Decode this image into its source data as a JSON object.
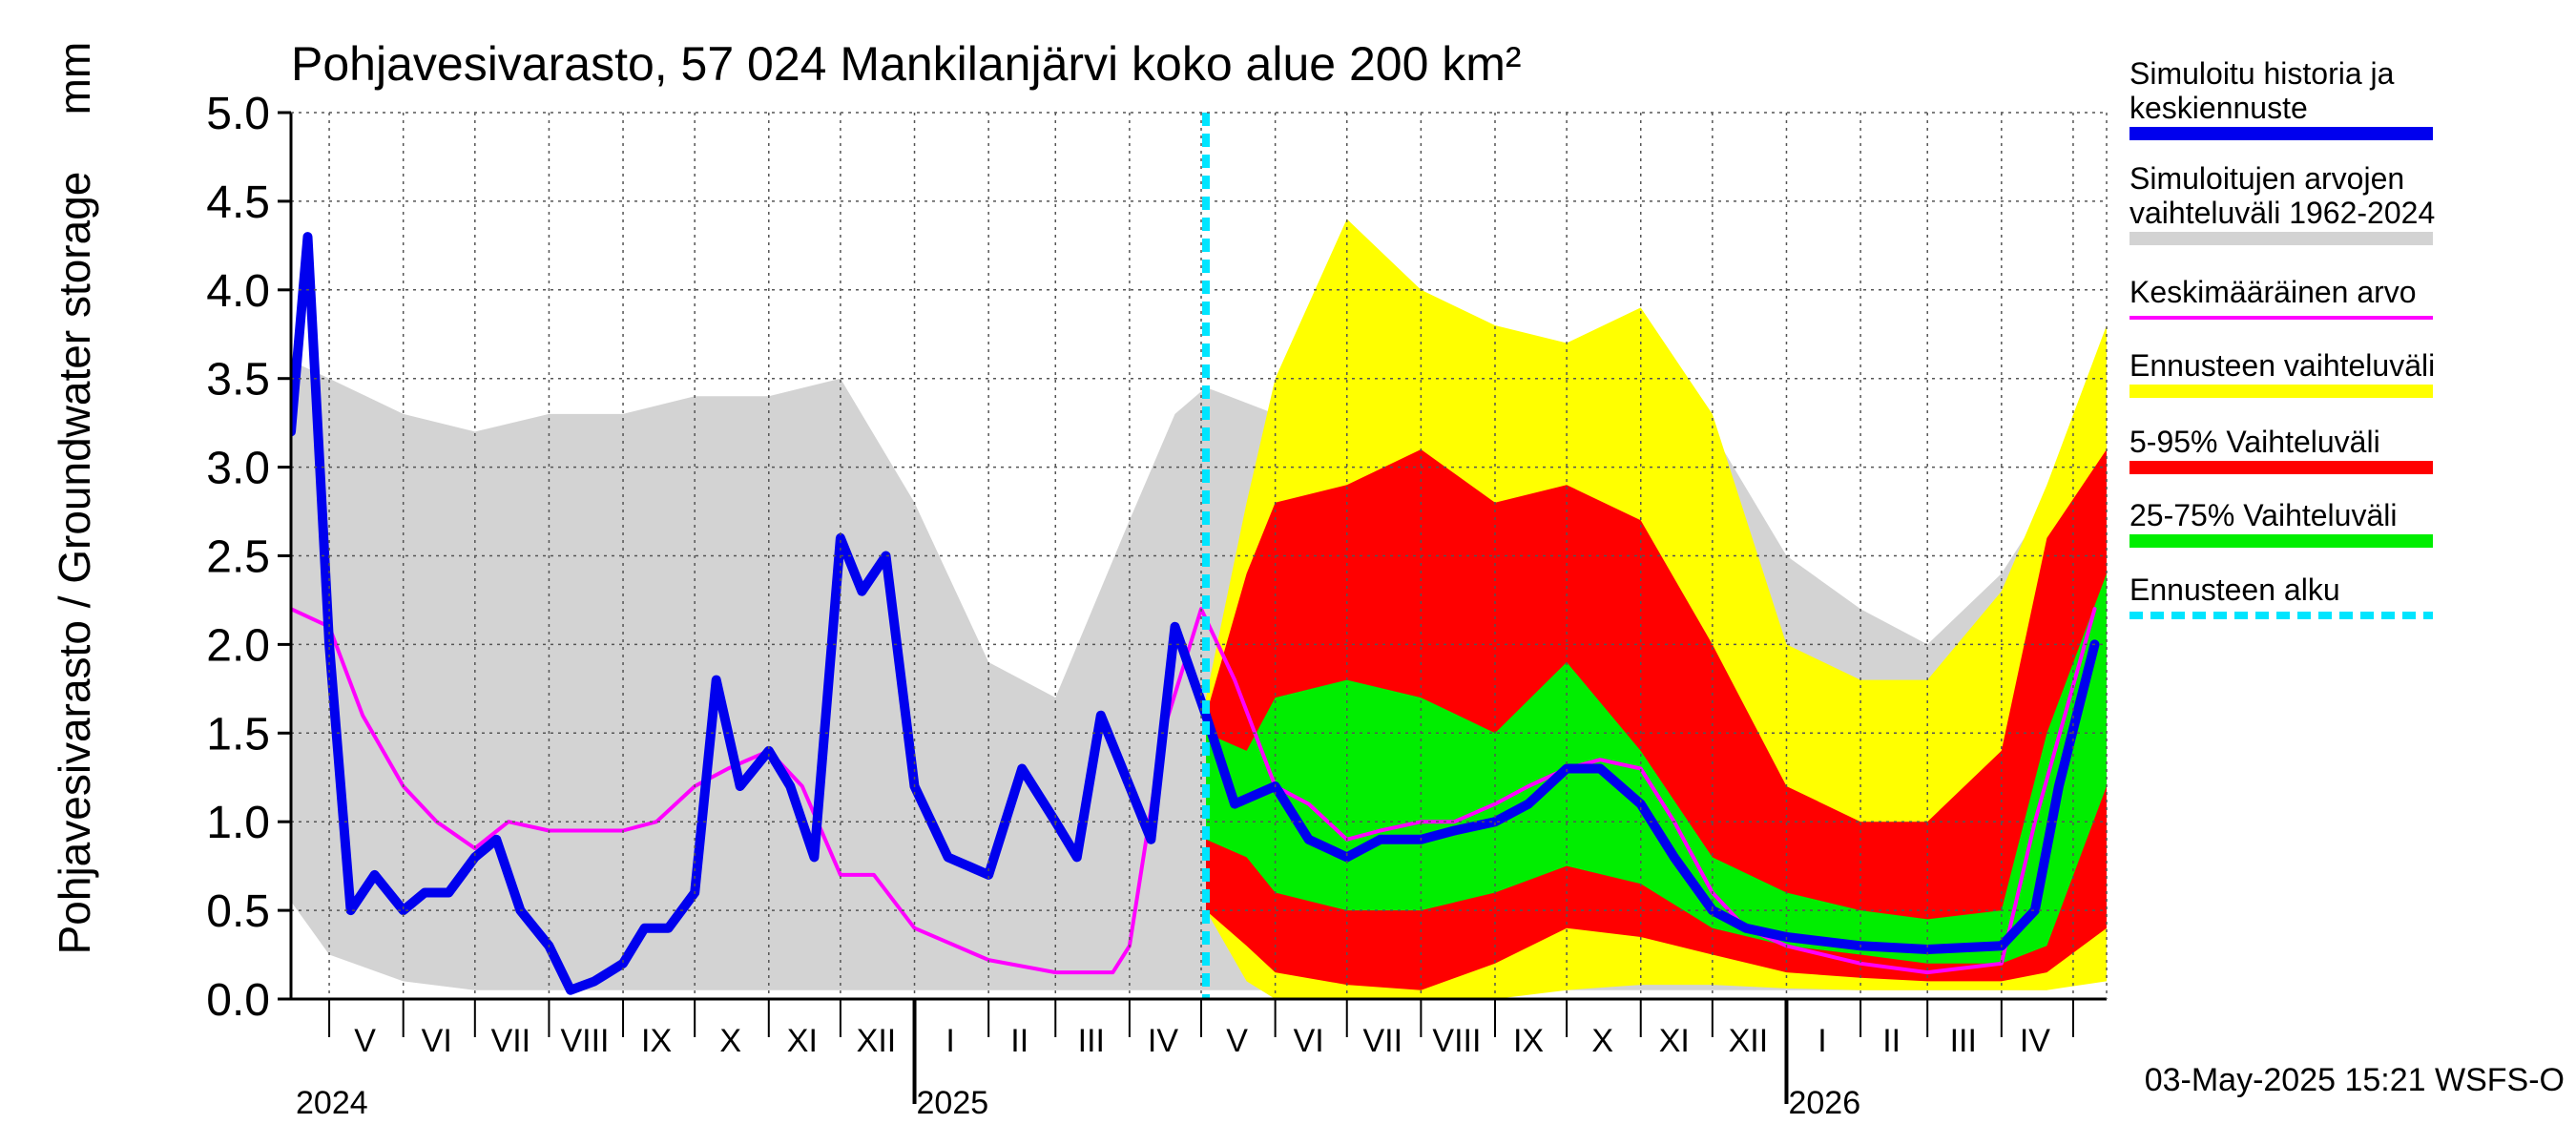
{
  "chart_data": {
    "type": "area",
    "title": "Pohjavesivarasto, 57 024 Mankilanjärvi koko alue 200 km²",
    "ylabel": "Pohjavesivarasto / Groundwater storage",
    "yunit": "mm",
    "ylim": [
      0,
      5
    ],
    "yticks": [
      "0.0",
      "0.5",
      "1.0",
      "1.5",
      "2.0",
      "2.5",
      "3.0",
      "3.5",
      "4.0",
      "4.5",
      "5.0"
    ],
    "xlim": [
      "2024-04-15",
      "2026-05-15"
    ],
    "month_labels": [
      {
        "label": "V",
        "date": "2024-05-16"
      },
      {
        "label": "VI",
        "date": "2024-06-15"
      },
      {
        "label": "VII",
        "date": "2024-07-16"
      },
      {
        "label": "VIII",
        "date": "2024-08-16"
      },
      {
        "label": "IX",
        "date": "2024-09-15"
      },
      {
        "label": "X",
        "date": "2024-10-16"
      },
      {
        "label": "XI",
        "date": "2024-11-15"
      },
      {
        "label": "XII",
        "date": "2024-12-16"
      },
      {
        "label": "I",
        "date": "2025-01-16"
      },
      {
        "label": "II",
        "date": "2025-02-14"
      },
      {
        "label": "III",
        "date": "2025-03-16"
      },
      {
        "label": "IV",
        "date": "2025-04-15"
      },
      {
        "label": "V",
        "date": "2025-05-16"
      },
      {
        "label": "VI",
        "date": "2025-06-15"
      },
      {
        "label": "VII",
        "date": "2025-07-16"
      },
      {
        "label": "VIII",
        "date": "2025-08-16"
      },
      {
        "label": "IX",
        "date": "2025-09-15"
      },
      {
        "label": "X",
        "date": "2025-10-16"
      },
      {
        "label": "XI",
        "date": "2025-11-15"
      },
      {
        "label": "XII",
        "date": "2025-12-16"
      },
      {
        "label": "I",
        "date": "2026-01-16"
      },
      {
        "label": "II",
        "date": "2026-02-14"
      },
      {
        "label": "III",
        "date": "2026-03-16"
      },
      {
        "label": "IV",
        "date": "2026-04-15"
      }
    ],
    "year_labels": [
      {
        "label": "2024",
        "date": "2024-05-01"
      },
      {
        "label": "2025",
        "date": "2025-01-01"
      },
      {
        "label": "2026",
        "date": "2026-01-01"
      }
    ],
    "forecast_start": "2025-05-03",
    "legend_position": "right",
    "legend": [
      {
        "label": "Simuloitu historia ja keskiennuste",
        "color": "#0000ee"
      },
      {
        "label": "Simuloitujen arvojen vaihteluväli 1962-2024",
        "color": "#d3d3d3"
      },
      {
        "label": "Keskimääräinen arvo",
        "color": "#ff00ff"
      },
      {
        "label": "Ennusteen vaihteluväli",
        "color": "#ffff00"
      },
      {
        "label": "5-95% Vaihteluväli",
        "color": "#ff0000"
      },
      {
        "label": "25-75% Vaihteluväli",
        "color": "#00ee00"
      },
      {
        "label": "Ennusteen alku",
        "color": "#00e5ff"
      }
    ],
    "footer": "03-May-2025 15:21 WSFS-O",
    "series": [
      {
        "name": "Simuloitujen arvojen vaihteluväli 1962-2024",
        "kind": "band",
        "x": [
          "2024-04-15",
          "2024-05-01",
          "2024-06-01",
          "2024-07-01",
          "2024-08-01",
          "2024-09-01",
          "2024-10-01",
          "2024-11-01",
          "2024-12-01",
          "2025-01-01",
          "2025-02-01",
          "2025-03-01",
          "2025-04-01",
          "2025-04-20",
          "2025-05-03",
          "2025-06-01",
          "2025-07-01",
          "2025-08-01",
          "2025-09-01",
          "2025-10-01",
          "2025-11-01",
          "2025-12-01",
          "2026-01-01",
          "2026-02-01",
          "2026-03-01",
          "2026-04-01",
          "2026-04-20",
          "2026-05-15"
        ],
        "low": [
          0.55,
          0.25,
          0.1,
          0.05,
          0.05,
          0.05,
          0.05,
          0.05,
          0.05,
          0.05,
          0.05,
          0.05,
          0.05,
          0.05,
          0.05,
          0.05,
          0.05,
          0.05,
          0.05,
          0.05,
          0.05,
          0.05,
          0.05,
          0.05,
          0.05,
          0.05,
          0.05,
          0.6
        ],
        "high": [
          3.6,
          3.5,
          3.3,
          3.2,
          3.3,
          3.3,
          3.4,
          3.4,
          3.5,
          2.8,
          1.9,
          1.7,
          2.7,
          3.3,
          3.45,
          3.3,
          3.2,
          3.3,
          3.3,
          3.3,
          3.3,
          3.2,
          2.5,
          2.2,
          2.0,
          2.4,
          2.8,
          3.2
        ]
      },
      {
        "name": "Ennusteen vaihteluväli",
        "kind": "band",
        "x": [
          "2025-05-03",
          "2025-05-20",
          "2025-06-01",
          "2025-07-01",
          "2025-08-01",
          "2025-09-01",
          "2025-10-01",
          "2025-11-01",
          "2025-12-01",
          "2026-01-01",
          "2026-02-01",
          "2026-03-01",
          "2026-04-01",
          "2026-04-20",
          "2026-05-15"
        ],
        "low": [
          0.5,
          0.1,
          0.0,
          0.0,
          0.0,
          0.0,
          0.05,
          0.08,
          0.08,
          0.06,
          0.05,
          0.05,
          0.05,
          0.05,
          0.1
        ],
        "high": [
          1.7,
          2.8,
          3.5,
          4.4,
          4.0,
          3.8,
          3.7,
          3.9,
          3.3,
          2.0,
          1.8,
          1.8,
          2.3,
          2.9,
          3.8
        ]
      },
      {
        "name": "5-95% Vaihteluväli",
        "kind": "band",
        "x": [
          "2025-05-03",
          "2025-05-20",
          "2025-06-01",
          "2025-07-01",
          "2025-08-01",
          "2025-09-01",
          "2025-10-01",
          "2025-11-01",
          "2025-12-01",
          "2026-01-01",
          "2026-02-01",
          "2026-03-01",
          "2026-04-01",
          "2026-04-20",
          "2026-05-15"
        ],
        "low": [
          0.5,
          0.3,
          0.15,
          0.08,
          0.05,
          0.2,
          0.4,
          0.35,
          0.25,
          0.15,
          0.12,
          0.1,
          0.1,
          0.15,
          0.4
        ],
        "high": [
          1.6,
          2.4,
          2.8,
          2.9,
          3.1,
          2.8,
          2.9,
          2.7,
          2.0,
          1.2,
          1.0,
          1.0,
          1.4,
          2.6,
          3.1
        ]
      },
      {
        "name": "25-75% Vaihteluväli",
        "kind": "band",
        "x": [
          "2025-05-03",
          "2025-05-20",
          "2025-06-01",
          "2025-07-01",
          "2025-08-01",
          "2025-09-01",
          "2025-10-01",
          "2025-11-01",
          "2025-12-01",
          "2026-01-01",
          "2026-02-01",
          "2026-03-01",
          "2026-04-01",
          "2026-04-20",
          "2026-05-15"
        ],
        "low": [
          0.9,
          0.8,
          0.6,
          0.5,
          0.5,
          0.6,
          0.75,
          0.65,
          0.4,
          0.3,
          0.25,
          0.2,
          0.2,
          0.3,
          1.2
        ],
        "high": [
          1.5,
          1.4,
          1.7,
          1.8,
          1.7,
          1.5,
          1.9,
          1.4,
          0.8,
          0.6,
          0.5,
          0.45,
          0.5,
          1.5,
          2.4
        ]
      },
      {
        "name": "Keskimääräinen arvo",
        "kind": "line",
        "x": [
          "2024-04-15",
          "2024-05-01",
          "2024-05-15",
          "2024-06-01",
          "2024-06-15",
          "2024-07-01",
          "2024-07-15",
          "2024-08-01",
          "2024-08-15",
          "2024-09-01",
          "2024-09-15",
          "2024-10-01",
          "2024-10-15",
          "2024-11-01",
          "2024-11-15",
          "2024-12-01",
          "2024-12-15",
          "2025-01-01",
          "2025-02-01",
          "2025-03-01",
          "2025-03-25",
          "2025-04-01",
          "2025-04-15",
          "2025-05-01",
          "2025-05-15",
          "2025-06-01",
          "2025-06-15",
          "2025-07-01",
          "2025-07-15",
          "2025-08-01",
          "2025-08-15",
          "2025-09-01",
          "2025-09-15",
          "2025-10-01",
          "2025-10-15",
          "2025-11-01",
          "2025-11-15",
          "2025-12-01",
          "2025-12-15",
          "2026-01-01",
          "2026-02-01",
          "2026-03-01",
          "2026-04-01",
          "2026-04-15",
          "2026-05-10"
        ],
        "y": [
          2.2,
          2.1,
          1.6,
          1.2,
          1.0,
          0.85,
          1.0,
          0.95,
          0.95,
          0.95,
          1.0,
          1.2,
          1.3,
          1.4,
          1.2,
          0.7,
          0.7,
          0.4,
          0.22,
          0.15,
          0.15,
          0.3,
          1.5,
          2.2,
          1.8,
          1.2,
          1.1,
          0.9,
          0.95,
          1.0,
          1.0,
          1.1,
          1.2,
          1.3,
          1.35,
          1.3,
          1.0,
          0.6,
          0.4,
          0.3,
          0.2,
          0.15,
          0.2,
          1.0,
          2.2
        ]
      },
      {
        "name": "Simuloitu historia ja keskiennuste",
        "kind": "line",
        "x": [
          "2024-04-15",
          "2024-04-22",
          "2024-05-01",
          "2024-05-10",
          "2024-05-20",
          "2024-06-01",
          "2024-06-10",
          "2024-06-20",
          "2024-07-01",
          "2024-07-10",
          "2024-07-20",
          "2024-08-01",
          "2024-08-10",
          "2024-08-20",
          "2024-09-01",
          "2024-09-10",
          "2024-09-20",
          "2024-10-01",
          "2024-10-10",
          "2024-10-20",
          "2024-11-01",
          "2024-11-10",
          "2024-11-20",
          "2024-12-01",
          "2024-12-10",
          "2024-12-20",
          "2025-01-01",
          "2025-01-15",
          "2025-02-01",
          "2025-02-15",
          "2025-03-01",
          "2025-03-10",
          "2025-03-20",
          "2025-04-01",
          "2025-04-10",
          "2025-04-20",
          "2025-05-03",
          "2025-05-15",
          "2025-06-01",
          "2025-06-15",
          "2025-07-01",
          "2025-07-15",
          "2025-08-01",
          "2025-08-15",
          "2025-09-01",
          "2025-09-15",
          "2025-10-01",
          "2025-10-15",
          "2025-11-01",
          "2025-11-15",
          "2025-12-01",
          "2025-12-15",
          "2026-01-01",
          "2026-02-01",
          "2026-03-01",
          "2026-04-01",
          "2026-04-15",
          "2026-04-25",
          "2026-05-10"
        ],
        "y": [
          3.2,
          4.3,
          2.0,
          0.5,
          0.7,
          0.5,
          0.6,
          0.6,
          0.8,
          0.9,
          0.5,
          0.3,
          0.05,
          0.1,
          0.2,
          0.4,
          0.4,
          0.6,
          1.8,
          1.2,
          1.4,
          1.2,
          0.8,
          2.6,
          2.3,
          2.5,
          1.2,
          0.8,
          0.7,
          1.3,
          1.0,
          0.8,
          1.6,
          1.2,
          0.9,
          2.1,
          1.6,
          1.1,
          1.2,
          0.9,
          0.8,
          0.9,
          0.9,
          0.95,
          1.0,
          1.1,
          1.3,
          1.3,
          1.1,
          0.8,
          0.5,
          0.4,
          0.35,
          0.3,
          0.28,
          0.3,
          0.5,
          1.2,
          2.0
        ]
      }
    ]
  }
}
